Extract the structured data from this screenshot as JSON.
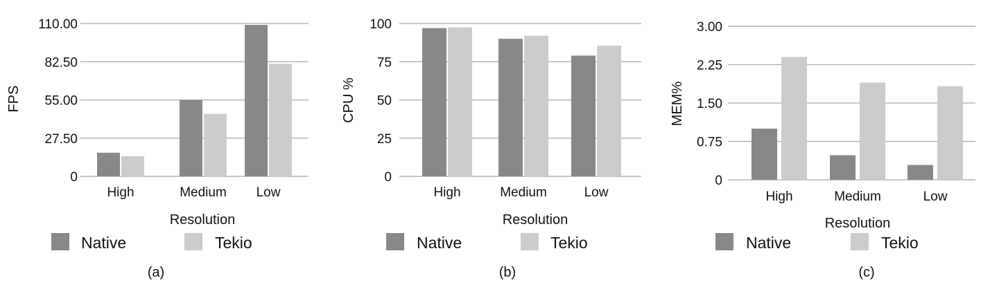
{
  "chart_data": [
    {
      "type": "bar",
      "categories": [
        "High",
        "Medium",
        "Low"
      ],
      "series": [
        {
          "name": "Native",
          "values": [
            17,
            55,
            109
          ],
          "color": "#888888"
        },
        {
          "name": "Tekio",
          "values": [
            14.5,
            45,
            81
          ],
          "color": "#cccccc"
        }
      ],
      "xlabel": "Resolution",
      "ylabel": "FPS",
      "ylim": [
        0,
        110
      ],
      "yticks": [
        0,
        27.5,
        55,
        82.5,
        110
      ],
      "ytick_labels": [
        "0",
        "27.50",
        "55.00",
        "82.50",
        "110.00"
      ],
      "grid": true,
      "legend": "bottom",
      "caption": "(a)"
    },
    {
      "type": "bar",
      "categories": [
        "High",
        "Medium",
        "Low"
      ],
      "series": [
        {
          "name": "Native",
          "values": [
            97,
            90,
            79
          ],
          "color": "#888888"
        },
        {
          "name": "Tekio",
          "values": [
            97.5,
            92,
            85.5
          ],
          "color": "#cccccc"
        }
      ],
      "xlabel": "Resolution",
      "ylabel": "CPU %",
      "ylim": [
        0,
        100
      ],
      "yticks": [
        0,
        25,
        50,
        75,
        100
      ],
      "ytick_labels": [
        "0",
        "25",
        "50",
        "75",
        "100"
      ],
      "grid": true,
      "legend": "bottom",
      "caption": "(b)"
    },
    {
      "type": "bar",
      "categories": [
        "High",
        "Medium",
        "Low"
      ],
      "series": [
        {
          "name": "Native",
          "values": [
            1.0,
            0.48,
            0.29
          ],
          "color": "#888888"
        },
        {
          "name": "Tekio",
          "values": [
            2.4,
            1.9,
            1.83
          ],
          "color": "#cccccc"
        }
      ],
      "xlabel": "Resolution",
      "ylabel": "MEM%",
      "ylim": [
        0,
        3
      ],
      "yticks": [
        0,
        0.75,
        1.5,
        2.25,
        3
      ],
      "ytick_labels": [
        "0",
        "0.75",
        "1.50",
        "2.25",
        "3.00"
      ],
      "grid": true,
      "legend": "bottom",
      "caption": "(c)"
    }
  ]
}
